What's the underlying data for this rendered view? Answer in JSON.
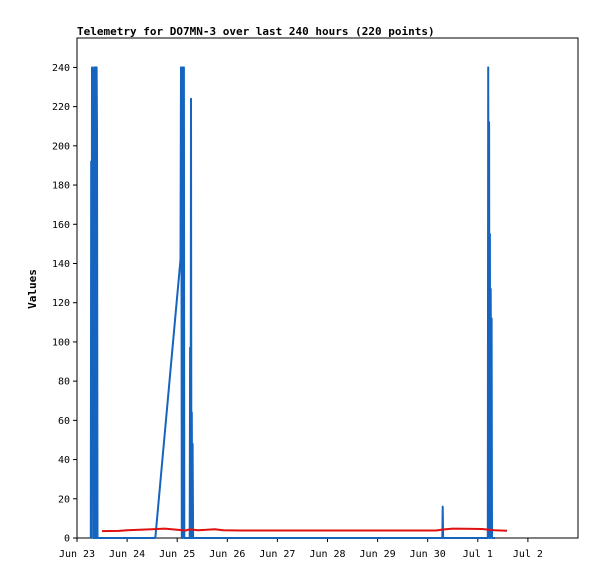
{
  "chart_data": {
    "type": "line",
    "title": "Telemetry for DO7MN-3 over last 240 hours (220 points)",
    "xlabel": "",
    "ylabel": "Values",
    "ylim": [
      0,
      255
    ],
    "yticks": [
      0,
      20,
      40,
      60,
      80,
      100,
      120,
      140,
      160,
      180,
      200,
      220,
      240
    ],
    "xlim": [
      0,
      240
    ],
    "xticks": [
      {
        "label": "Jun 23",
        "hours": 0
      },
      {
        "label": "Jun 24",
        "hours": 24
      },
      {
        "label": "Jun 25",
        "hours": 48
      },
      {
        "label": "Jun 26",
        "hours": 72
      },
      {
        "label": "Jun 27",
        "hours": 96
      },
      {
        "label": "Jun 28",
        "hours": 120
      },
      {
        "label": "Jun 29",
        "hours": 144
      },
      {
        "label": "Jun 30",
        "hours": 168
      },
      {
        "label": "Jul 1",
        "hours": 192
      },
      {
        "label": "Jul 2",
        "hours": 216
      }
    ],
    "grid": false,
    "series": [
      {
        "color": "#1565c0",
        "x": [
          6.6,
          6.8,
          7.0,
          7.2,
          7.4,
          7.6,
          7.8,
          8.0,
          8.2,
          8.4,
          8.6,
          8.8,
          9.0,
          9.2,
          9.4,
          9.6,
          9.8,
          10.0,
          10.2,
          10.4,
          10.6,
          10.8,
          37.5,
          49.6,
          49.8,
          50.0,
          50.2,
          50.4,
          50.6,
          50.8,
          51.0,
          51.2,
          51.4,
          51.6,
          51.8,
          52.0,
          52.2,
          54.0,
          54.2,
          54.4,
          54.6,
          54.8,
          55.0,
          55.2,
          55.4,
          55.6,
          78.5,
          175.0,
          175.2,
          175.4,
          175.6,
          196.8,
          197.0,
          197.2,
          197.4,
          197.6,
          197.8,
          198.0,
          198.2,
          198.4,
          198.6,
          198.8,
          199.0,
          199.2,
          199.4,
          199.6,
          199.8,
          200.0,
          200.2
        ],
        "y": [
          0,
          192,
          0,
          240,
          235,
          230,
          225,
          0,
          240,
          225,
          0,
          240,
          0,
          0,
          240,
          208,
          0,
          0,
          0,
          0,
          0,
          0,
          0,
          142,
          240,
          200,
          0,
          240,
          0,
          224,
          30,
          240,
          0,
          0,
          0,
          0,
          0,
          0,
          97,
          0,
          224,
          0,
          64,
          0,
          48,
          0,
          0,
          0,
          16,
          0,
          0,
          0,
          240,
          100,
          212,
          0,
          155,
          0,
          127,
          45,
          112,
          0,
          0,
          0,
          0,
          0,
          0,
          0,
          0
        ]
      },
      {
        "color": "#e01010",
        "x": [
          12,
          20,
          24,
          30,
          36,
          42,
          48,
          52,
          54,
          58,
          62,
          66,
          70,
          78,
          100,
          140,
          172,
          176,
          180,
          186,
          194,
          200,
          206
        ],
        "y": [
          3.5,
          3.6,
          4.0,
          4.2,
          4.5,
          4.8,
          4.2,
          3.8,
          4.4,
          4.0,
          4.2,
          4.5,
          4.0,
          3.8,
          3.8,
          3.8,
          3.8,
          4.4,
          4.8,
          4.7,
          4.6,
          4.0,
          3.7
        ]
      }
    ]
  }
}
